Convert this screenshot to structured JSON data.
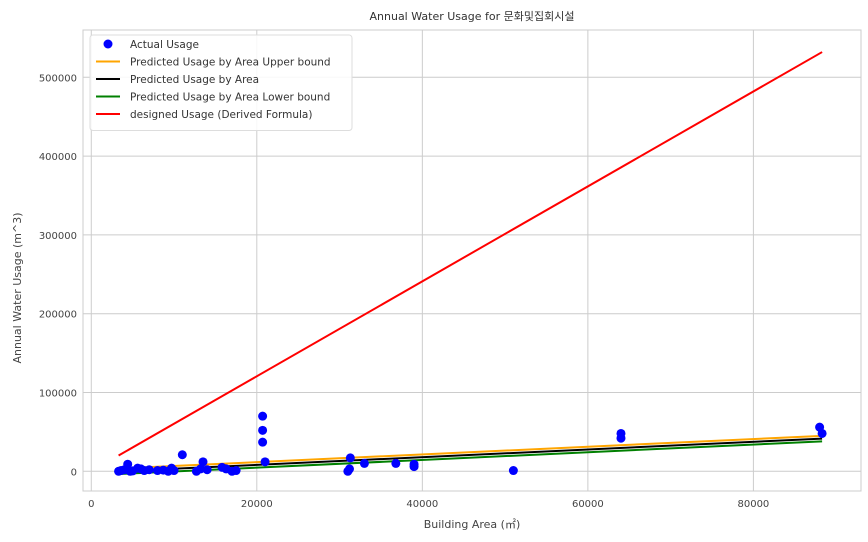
{
  "chart_data": {
    "type": "scatter",
    "title": "Annual Water Usage for 문화및집회시설",
    "xlabel": "Building Area (㎡)",
    "ylabel": "Annual Water Usage (m^3)",
    "xlim": [
      -1000,
      93000
    ],
    "ylim": [
      -25000,
      560000
    ],
    "x_ticks": [
      0,
      20000,
      40000,
      60000,
      80000
    ],
    "x_tick_labels": [
      "0",
      "20000",
      "40000",
      "60000",
      "80000"
    ],
    "y_ticks": [
      0,
      100000,
      200000,
      300000,
      400000,
      500000
    ],
    "y_tick_labels": [
      "0",
      "100000",
      "200000",
      "300000",
      "400000",
      "500000"
    ],
    "grid": true,
    "legend_position": "top-left",
    "series": [
      {
        "name": "Actual Usage",
        "kind": "scatter",
        "color": "#0000ff",
        "points": [
          [
            3300,
            0
          ],
          [
            3600,
            1000
          ],
          [
            4000,
            2000
          ],
          [
            4400,
            9000
          ],
          [
            4700,
            0
          ],
          [
            5000,
            500
          ],
          [
            5600,
            4000
          ],
          [
            6000,
            3000
          ],
          [
            6400,
            1000
          ],
          [
            7000,
            2000
          ],
          [
            8000,
            1000
          ],
          [
            8700,
            1500
          ],
          [
            9300,
            0
          ],
          [
            9700,
            4000
          ],
          [
            10000,
            1000
          ],
          [
            11000,
            21000
          ],
          [
            12700,
            0
          ],
          [
            13200,
            3000
          ],
          [
            13500,
            12000
          ],
          [
            14000,
            2000
          ],
          [
            15800,
            5000
          ],
          [
            16300,
            3000
          ],
          [
            17000,
            0
          ],
          [
            17500,
            1000
          ],
          [
            20700,
            70000
          ],
          [
            20700,
            52000
          ],
          [
            20700,
            37000
          ],
          [
            21000,
            12000
          ],
          [
            31000,
            0
          ],
          [
            31200,
            3000
          ],
          [
            31300,
            17000
          ],
          [
            33000,
            10000
          ],
          [
            36800,
            10000
          ],
          [
            39000,
            6000
          ],
          [
            39000,
            9000
          ],
          [
            51000,
            1000
          ],
          [
            64000,
            48000
          ],
          [
            64000,
            42000
          ],
          [
            88000,
            56000
          ],
          [
            88300,
            48000
          ]
        ]
      },
      {
        "name": "Predicted Usage by Area Upper bound",
        "kind": "line",
        "color": "#ffa500",
        "x": [
          3300,
          88300
        ],
        "y": [
          3500,
          45000
        ]
      },
      {
        "name": "Predicted Usage by Area",
        "kind": "line",
        "color": "#000000",
        "x": [
          3300,
          88300
        ],
        "y": [
          0,
          41500
        ]
      },
      {
        "name": "Predicted Usage by Area Lower bound",
        "kind": "line",
        "color": "#008000",
        "x": [
          3300,
          88300
        ],
        "y": [
          -3500,
          38000
        ]
      },
      {
        "name": "designed Usage (Derived Formula)",
        "kind": "line",
        "color": "#ff0000",
        "x": [
          3300,
          88300
        ],
        "y": [
          20000,
          532000
        ]
      }
    ]
  }
}
